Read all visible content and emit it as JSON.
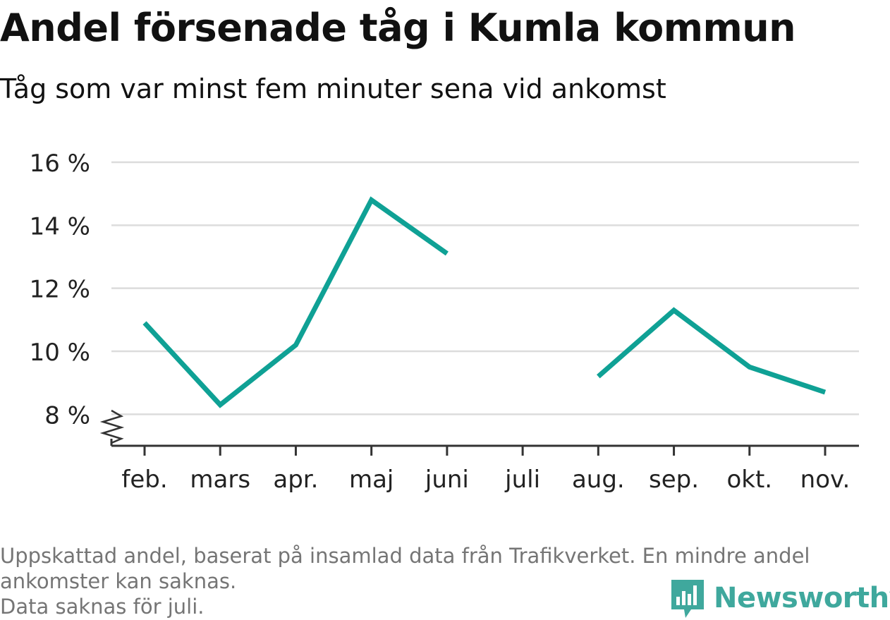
{
  "chart_data": {
    "type": "line",
    "title": "Andel försenade tåg i Kumla kommun",
    "subtitle": "Tåg som var minst fem minuter sena vid ankomst",
    "categories": [
      "feb.",
      "mars",
      "apr.",
      "maj",
      "juni",
      "juli",
      "aug.",
      "sep.",
      "okt.",
      "nov."
    ],
    "series": [
      {
        "values": [
          10.9,
          8.3,
          10.2,
          14.8,
          13.1,
          null,
          9.2,
          11.3,
          9.5,
          8.7
        ],
        "color": "#0fa195"
      }
    ],
    "yticks": [
      8,
      10,
      12,
      14,
      16
    ],
    "ytick_labels": [
      "8 %",
      "10 %",
      "12 %",
      "14 %",
      "16 %"
    ],
    "ylim": [
      7,
      16
    ],
    "grid": true,
    "axis_break": true
  },
  "footnote": {
    "line1": "Uppskattad andel, baserat på insamlad data från Trafikverket. En mindre andel",
    "line2": "ankomster kan saknas.",
    "line3": "Data saknas för juli."
  },
  "brand": {
    "name": "Newsworthy",
    "icon": "newsworthy-logo-icon",
    "color": "#3fa89d"
  }
}
